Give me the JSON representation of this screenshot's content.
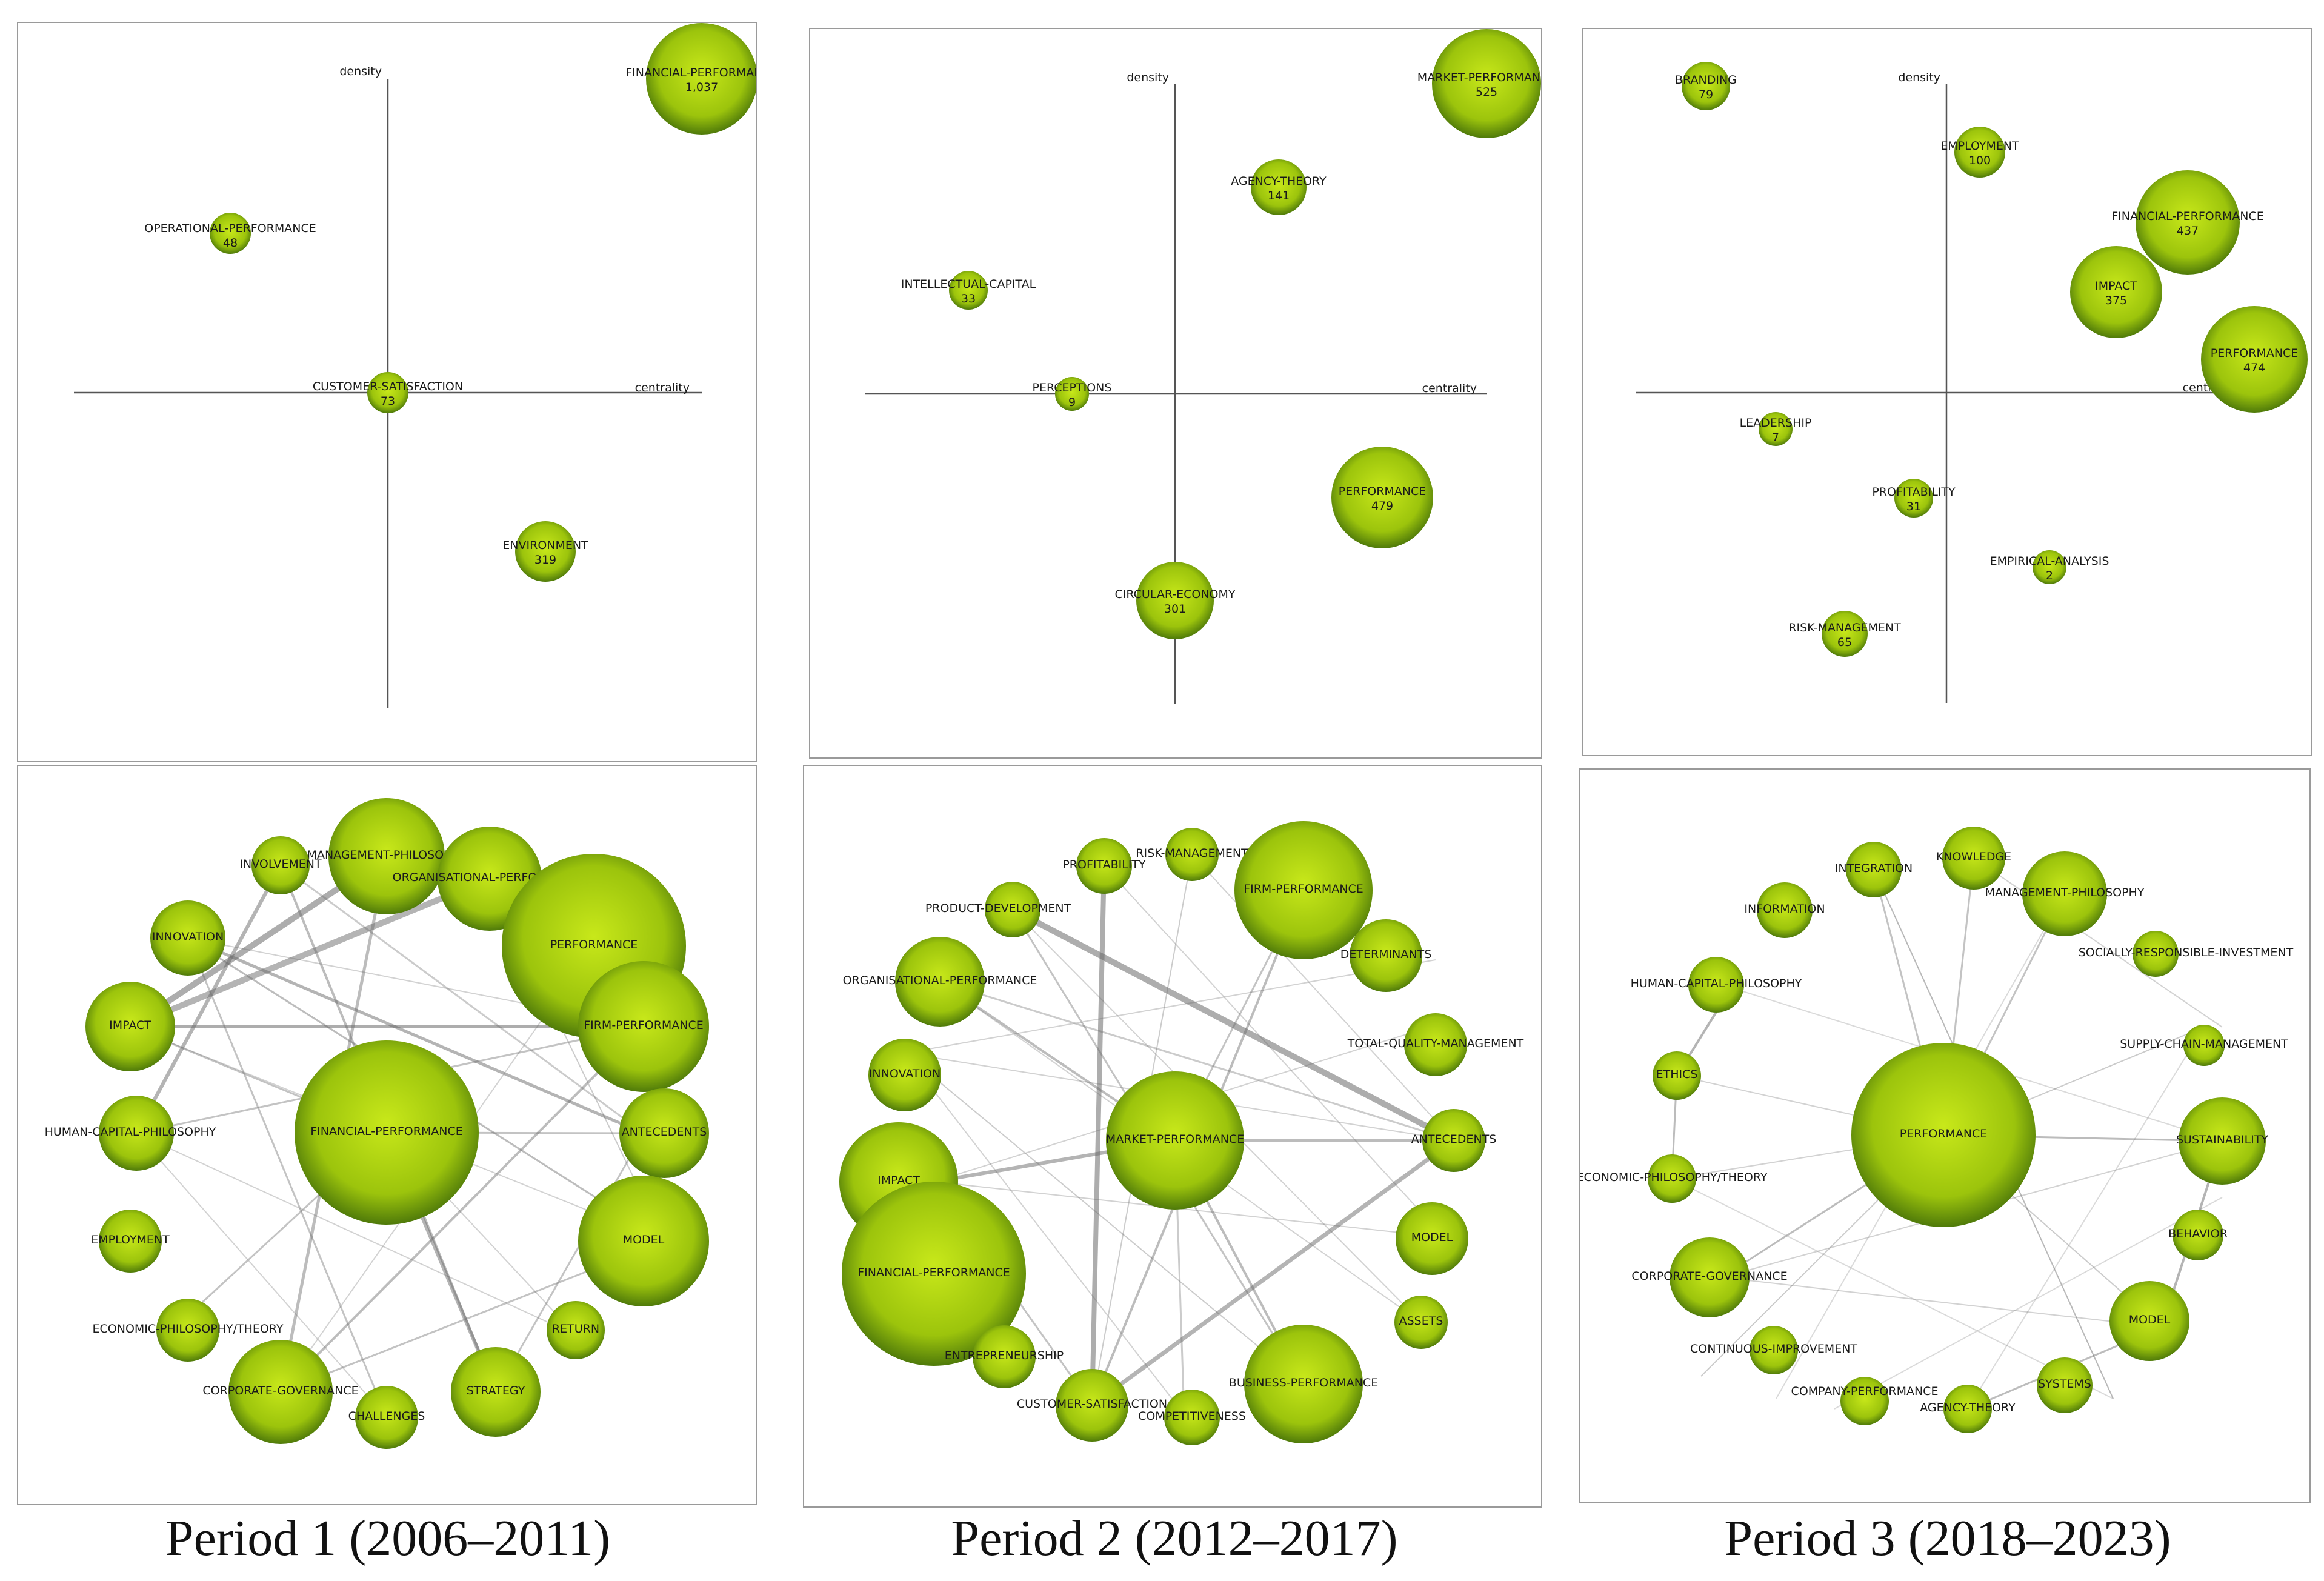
{
  "colors": {
    "bubble_light": "#c8e81a",
    "bubble_mid": "#9cc40c",
    "bubble_dark": "#4f7a0a",
    "edge": "#6a6a6a",
    "axis": "#555555"
  },
  "axis_labels": {
    "density": "density",
    "centrality": "centrality"
  },
  "periods": [
    {
      "caption": "Period 1 (2006–2011)",
      "strategic": [
        {
          "label": "FINANCIAL-PERFORMANCE",
          "value": "1,037"
        },
        {
          "label": "OPERATIONAL-PERFORMANCE",
          "value": "48"
        },
        {
          "label": "CUSTOMER-SATISFACTION",
          "value": "73"
        },
        {
          "label": "ENVIRONMENT",
          "value": "319"
        }
      ],
      "network": [
        "MANAGEMENT-PHILOSOPHY",
        "INVOLVEMENT",
        "ORGANISATIONAL-PERFORMANCE",
        "PERFORMANCE",
        "INNOVATION",
        "IMPACT",
        "FIRM-PERFORMANCE",
        "HUMAN-CAPITAL-PHILOSOPHY",
        "FINANCIAL-PERFORMANCE",
        "ANTECEDENTS",
        "EMPLOYMENT",
        "MODEL",
        "ECONOMIC-PHILOSOPHY/THEORY",
        "RETURN",
        "CORPORATE-GOVERNANCE",
        "CHALLENGES",
        "STRATEGY"
      ]
    },
    {
      "caption": "Period 2 (2012–2017)",
      "strategic": [
        {
          "label": "MARKET-PERFORMANCE",
          "value": "525"
        },
        {
          "label": "AGENCY-THEORY",
          "value": "141"
        },
        {
          "label": "INTELLECTUAL-CAPITAL",
          "value": "33"
        },
        {
          "label": "PERCEPTIONS",
          "value": "9"
        },
        {
          "label": "PERFORMANCE",
          "value": "479"
        },
        {
          "label": "CIRCULAR-ECONOMY",
          "value": "301"
        }
      ],
      "network": [
        "PROFITABILITY",
        "RISK-MANAGEMENT",
        "FIRM-PERFORMANCE",
        "PRODUCT-DEVELOPMENT",
        "DETERMINANTS",
        "ORGANISATIONAL-PERFORMANCE",
        "TOTAL-QUALITY-MANAGEMENT",
        "INNOVATION",
        "MARKET-PERFORMANCE",
        "ANTECEDENTS",
        "IMPACT",
        "MODEL",
        "FINANCIAL-PERFORMANCE",
        "ASSETS",
        "ENTREPRENEURSHIP",
        "CUSTOMER-SATISFACTION",
        "COMPETITIVENESS",
        "BUSINESS-PERFORMANCE"
      ]
    },
    {
      "caption": "Period 3 (2018–2023)",
      "strategic": [
        {
          "label": "BRANDING",
          "value": "79"
        },
        {
          "label": "EMPLOYMENT",
          "value": "100"
        },
        {
          "label": "FINANCIAL-PERFORMANCE",
          "value": "437"
        },
        {
          "label": "IMPACT",
          "value": "375"
        },
        {
          "label": "PERFORMANCE",
          "value": "474"
        },
        {
          "label": "LEADERSHIP",
          "value": "7"
        },
        {
          "label": "PROFITABILITY",
          "value": "31"
        },
        {
          "label": "EMPIRICAL-ANALYSIS",
          "value": "2"
        },
        {
          "label": "RISK-MANAGEMENT",
          "value": "65"
        }
      ],
      "network": [
        "INTEGRATION",
        "KNOWLEDGE",
        "INFORMATION",
        "MANAGEMENT-PHILOSOPHY",
        "SOCIALLY-RESPONSIBLE-INVESTMENT",
        "HUMAN-CAPITAL-PHILOSOPHY",
        "SUPPLY-CHAIN-MANAGEMENT",
        "ETHICS",
        "PERFORMANCE",
        "SUSTAINABILITY",
        "ECONOMIC-PHILOSOPHY/THEORY",
        "BEHAVIOR",
        "CORPORATE-GOVERNANCE",
        "MODEL",
        "CONTINUOUS-IMPROVEMENT",
        "SYSTEMS",
        "COMPANY-PERFORMANCE",
        "AGENCY-THEORY"
      ]
    }
  ]
}
